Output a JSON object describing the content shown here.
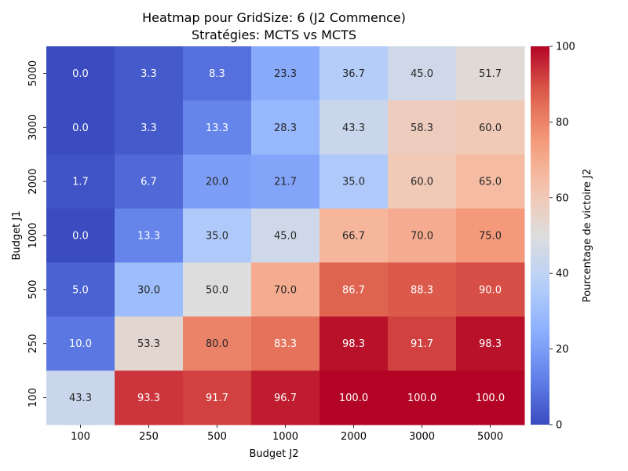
{
  "chart_data": {
    "type": "heatmap",
    "title": "Heatmap pour GridSize: 6 (J2 Commence)",
    "subtitle": "Stratégies: MCTS vs MCTS",
    "xlabel": "Budget J2",
    "ylabel": "Budget J1",
    "x_categories": [
      "100",
      "250",
      "500",
      "1000",
      "2000",
      "3000",
      "5000"
    ],
    "y_categories": [
      "5000",
      "3000",
      "2000",
      "1000",
      "500",
      "250",
      "100"
    ],
    "values": [
      [
        0.0,
        3.3,
        8.3,
        23.3,
        36.7,
        45.0,
        51.7
      ],
      [
        0.0,
        3.3,
        13.3,
        28.3,
        43.3,
        58.3,
        60.0
      ],
      [
        1.7,
        6.7,
        20.0,
        21.7,
        35.0,
        60.0,
        65.0
      ],
      [
        0.0,
        13.3,
        35.0,
        45.0,
        66.7,
        70.0,
        75.0
      ],
      [
        5.0,
        30.0,
        50.0,
        70.0,
        86.7,
        88.3,
        90.0
      ],
      [
        10.0,
        53.3,
        80.0,
        83.3,
        98.3,
        91.7,
        98.3
      ],
      [
        43.3,
        93.3,
        91.7,
        96.7,
        100.0,
        100.0,
        100.0
      ]
    ],
    "colorbar": {
      "label": "Pourcentage de victoire J2",
      "range": [
        0,
        100
      ],
      "ticks": [
        "0",
        "20",
        "40",
        "60",
        "80",
        "100"
      ],
      "colormap": "coolwarm"
    }
  }
}
